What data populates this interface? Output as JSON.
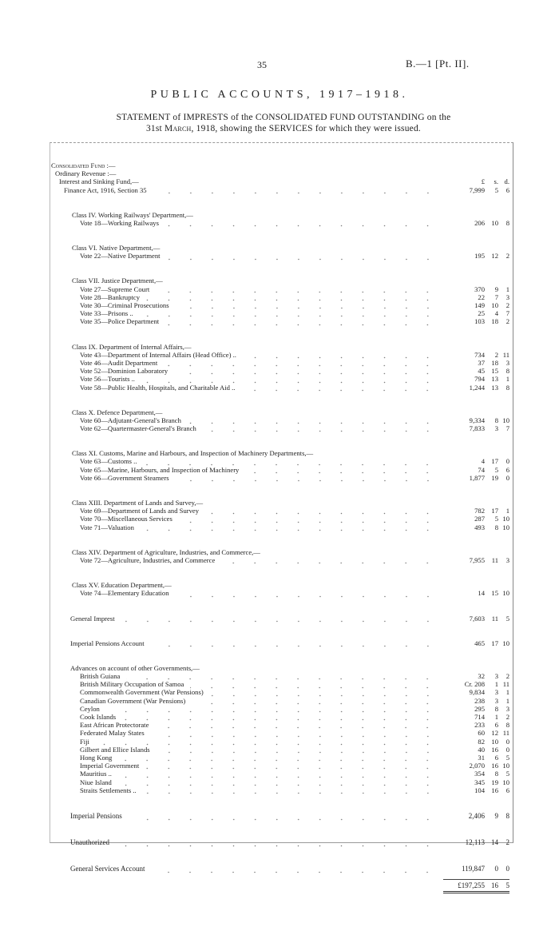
{
  "header": {
    "page_number": "35",
    "reference": "B.—1 [Pt. II]."
  },
  "title": "PUBLIC ACCOUNTS, 1917–1918.",
  "statement": {
    "line1": "STATEMENT of IMPRESTS of the CONSOLIDATED FUND OUTSTANDING on the",
    "line2_pre": "31st ",
    "line2_month": "March",
    "line2_post": ", 1918, showing the SERVICES for which they were issued."
  },
  "units": {
    "l": "£",
    "s": "s.",
    "d": "d."
  },
  "groups": [
    {
      "rows": [
        {
          "label": "Consolidated Fund :—",
          "lvl": "0",
          "sc": true
        },
        {
          "label": "Ordinary Revenue :—",
          "lvl": "1"
        },
        {
          "label": "Interest and Sinking Fund,—",
          "lvl": "2",
          "units": true
        },
        {
          "label": "Finance Act, 1916, Section 35",
          "lvl": "3",
          "amount": [
            "7,999",
            "5",
            "6"
          ]
        }
      ]
    },
    {
      "rows": [
        {
          "label": "Class IV. Working Railways' Department,—",
          "lvl": "c"
        },
        {
          "label": "Vote 18—Working Railways",
          "lvl": "v",
          "amount": [
            "206",
            "10",
            "8"
          ]
        }
      ]
    },
    {
      "rows": [
        {
          "label": "Class VI. Native Department,—",
          "lvl": "c"
        },
        {
          "label": "Vote 22—Native Department",
          "lvl": "v",
          "amount": [
            "195",
            "12",
            "2"
          ]
        }
      ]
    },
    {
      "rows": [
        {
          "label": "Class VII. Justice Department,—",
          "lvl": "c"
        },
        {
          "label": "Vote 27—Supreme Court",
          "lvl": "v",
          "amount": [
            "370",
            "9",
            "1"
          ]
        },
        {
          "label": "Vote 28—Bankruptcy",
          "lvl": "v",
          "amount": [
            "22",
            "7",
            "3"
          ]
        },
        {
          "label": "Vote 30—Criminal Prosecutions",
          "lvl": "v",
          "amount": [
            "149",
            "10",
            "2"
          ]
        },
        {
          "label": "Vote 33—Prisons ..",
          "lvl": "v",
          "amount": [
            "25",
            "4",
            "7"
          ]
        },
        {
          "label": "Vote 35—Police Department",
          "lvl": "v",
          "amount": [
            "103",
            "18",
            "2"
          ]
        }
      ]
    },
    {
      "rows": [
        {
          "label": "Class IX. Department of Internal Affairs,—",
          "lvl": "c"
        },
        {
          "label": "Vote 43—Department of Internal Affairs (Head Office) ..",
          "lvl": "v",
          "amount": [
            "734",
            "2",
            "11"
          ]
        },
        {
          "label": "Vote 46—Audit Department",
          "lvl": "v",
          "amount": [
            "37",
            "18",
            "3"
          ]
        },
        {
          "label": "Vote 52—Dominion Laboratory",
          "lvl": "v",
          "amount": [
            "45",
            "15",
            "8"
          ]
        },
        {
          "label": "Vote 56—Tourists ..",
          "lvl": "v",
          "amount": [
            "794",
            "13",
            "1"
          ]
        },
        {
          "label": "Vote 58—Public Health, Hospitals, and Charitable Aid ..",
          "lvl": "v",
          "amount": [
            "1,244",
            "13",
            "8"
          ]
        }
      ]
    },
    {
      "rows": [
        {
          "label": "Class X. Defence Department,—",
          "lvl": "c"
        },
        {
          "label": "Vote 60—Adjutant-General's Branch",
          "lvl": "v",
          "amount": [
            "9,334",
            "8",
            "10"
          ]
        },
        {
          "label": "Vote 62—Quartermaster-General's Branch",
          "lvl": "v",
          "amount": [
            "7,833",
            "3",
            "7"
          ]
        }
      ]
    },
    {
      "rows": [
        {
          "label": "Class XI. Customs, Marine and Harbours, and Inspection of Machinery Departments,—",
          "lvl": "c"
        },
        {
          "label": "Vote 63—Customs ..",
          "lvl": "v",
          "amount": [
            "4",
            "17",
            "0"
          ]
        },
        {
          "label": "Vote 65—Marine, Harbours, and Inspection of Machinery",
          "lvl": "v",
          "amount": [
            "74",
            "5",
            "6"
          ]
        },
        {
          "label": "Vote 66—Government Steamers",
          "lvl": "v",
          "amount": [
            "1,877",
            "19",
            "0"
          ]
        }
      ]
    },
    {
      "rows": [
        {
          "label": "Class XIII. Department of Lands and Survey,—",
          "lvl": "c"
        },
        {
          "label": "Vote 69—Department of Lands and Survey",
          "lvl": "v",
          "amount": [
            "782",
            "17",
            "1"
          ]
        },
        {
          "label": "Vote 70—Miscellaneous Services",
          "lvl": "v",
          "amount": [
            "287",
            "5",
            "10"
          ]
        },
        {
          "label": "Vote 71—Valuation",
          "lvl": "v",
          "amount": [
            "493",
            "8",
            "10"
          ]
        }
      ]
    },
    {
      "rows": [
        {
          "label": "Class XIV. Department of Agriculture, Industries, and Commerce,—",
          "lvl": "c"
        },
        {
          "label": "Vote 72—Agriculture, Industries, and Commerce",
          "lvl": "v",
          "amount": [
            "7,955",
            "11",
            "3"
          ]
        }
      ]
    },
    {
      "rows": [
        {
          "label": "Class XV. Education Department,—",
          "lvl": "c"
        },
        {
          "label": "Vote 74—Elementary Education",
          "lvl": "v",
          "amount": [
            "14",
            "15",
            "10"
          ]
        }
      ]
    },
    {
      "rows": [
        {
          "label": "General Imprest",
          "lvl": "g",
          "amount": [
            "7,603",
            "11",
            "5"
          ]
        }
      ]
    },
    {
      "rows": [
        {
          "label": "Imperial Pensions Account",
          "lvl": "g",
          "amount": [
            "465",
            "17",
            "10"
          ]
        }
      ]
    },
    {
      "rows": [
        {
          "label": "Advances on account of other Governments,—",
          "lvl": "g"
        },
        {
          "label": "British Guiana",
          "lvl": "v",
          "amount": [
            "32",
            "3",
            "2"
          ]
        },
        {
          "label": "British Military Occupation of Samoa",
          "lvl": "v",
          "amount": [
            "Cr. 208",
            "1",
            "11"
          ]
        },
        {
          "label": "Commonwealth Government (War Pensions)",
          "lvl": "v",
          "amount": [
            "9,834",
            "3",
            "1"
          ]
        },
        {
          "label": "Canadian Government (War Pensions)",
          "lvl": "v",
          "amount": [
            "238",
            "3",
            "1"
          ]
        },
        {
          "label": "Ceylon",
          "lvl": "v",
          "amount": [
            "295",
            "8",
            "3"
          ]
        },
        {
          "label": "Cook Islands",
          "lvl": "v",
          "amount": [
            "714",
            "1",
            "2"
          ]
        },
        {
          "label": "East African Protectorate",
          "lvl": "v",
          "amount": [
            "233",
            "6",
            "8"
          ]
        },
        {
          "label": "Federated Malay States",
          "lvl": "v",
          "amount": [
            "60",
            "12",
            "11"
          ]
        },
        {
          "label": "Fiji",
          "lvl": "v",
          "amount": [
            "82",
            "10",
            "0"
          ]
        },
        {
          "label": "Gilbert and Ellice Islands",
          "lvl": "v",
          "amount": [
            "40",
            "16",
            "0"
          ]
        },
        {
          "label": "Hong Kong",
          "lvl": "v",
          "amount": [
            "31",
            "6",
            "5"
          ]
        },
        {
          "label": "Imperial Government",
          "lvl": "v",
          "amount": [
            "2,070",
            "16",
            "10"
          ]
        },
        {
          "label": "Mauritius ..",
          "lvl": "v",
          "amount": [
            "354",
            "8",
            "5"
          ]
        },
        {
          "label": "Niue Island",
          "lvl": "v",
          "amount": [
            "345",
            "19",
            "10"
          ]
        },
        {
          "label": "Straits Settlements ..",
          "lvl": "v",
          "amount": [
            "104",
            "16",
            "6"
          ]
        }
      ]
    },
    {
      "single": true,
      "rows": [
        {
          "label": "Imperial Pensions",
          "lvl": "g",
          "amount": [
            "2,406",
            "9",
            "8"
          ]
        }
      ]
    },
    {
      "single": true,
      "rows": [
        {
          "label": "Unauthorized",
          "lvl": "g",
          "amount": [
            "12,113",
            "14",
            "2"
          ]
        }
      ]
    },
    {
      "single": true,
      "rows": [
        {
          "label": "General Services Account",
          "lvl": "g",
          "amount": [
            "119,847",
            "0",
            "0"
          ]
        }
      ]
    }
  ],
  "total": [
    "£197,255",
    "16",
    "5"
  ]
}
